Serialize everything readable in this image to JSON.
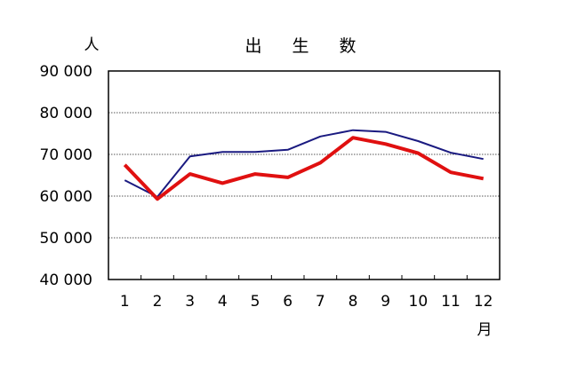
{
  "chart_data": {
    "type": "line",
    "title": "出 生 数",
    "ylabel": "人",
    "xlabel": "月",
    "categories": [
      "1",
      "2",
      "3",
      "4",
      "5",
      "6",
      "7",
      "8",
      "9",
      "10",
      "11",
      "12"
    ],
    "y_tick_labels": [
      "90 000",
      "80 000",
      "70 000",
      "60 000",
      "50 000",
      "40 000"
    ],
    "ylim": [
      40000,
      90000
    ],
    "y_ticks": [
      90000,
      80000,
      70000,
      60000,
      50000,
      40000
    ],
    "grid": "horizontal-dotted",
    "series": [
      {
        "color": "#1a1a80",
        "values": [
          63800,
          59800,
          69500,
          70600,
          70600,
          71100,
          74300,
          75800,
          75400,
          73200,
          70400,
          68900
        ]
      },
      {
        "color": "#e01010",
        "values": [
          67500,
          59300,
          65300,
          63100,
          65300,
          64500,
          68000,
          74000,
          72500,
          70300,
          65700,
          64200
        ]
      }
    ]
  }
}
